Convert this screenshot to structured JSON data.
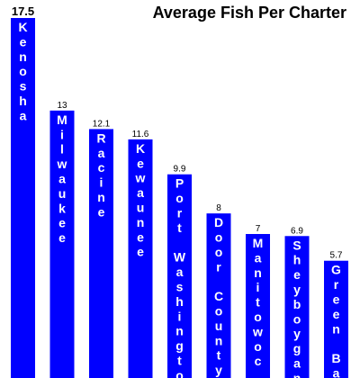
{
  "chart_data": {
    "type": "bar",
    "title": "Average Fish Per Charter",
    "categories": [
      "Kenosha",
      "Milwaukee",
      "Racine",
      "Kewaunee",
      "Port Washington",
      "Door County",
      "Manitowoc",
      "Sheyboygan",
      "Green Bay"
    ],
    "values": [
      17.5,
      13,
      12.1,
      11.6,
      9.9,
      8,
      7,
      6.9,
      5.7
    ],
    "value_labels": [
      "17.5",
      "13",
      "12.1",
      "11.6",
      "9.9",
      "8",
      "7",
      "6.9",
      "5.7"
    ],
    "xlabel": "",
    "ylabel": "",
    "ylim": [
      0,
      17.5
    ],
    "grid": false,
    "bar_color": "#0000ff",
    "bar_label_color": "#ffffff",
    "label_orientation": "vertical-stacked"
  }
}
